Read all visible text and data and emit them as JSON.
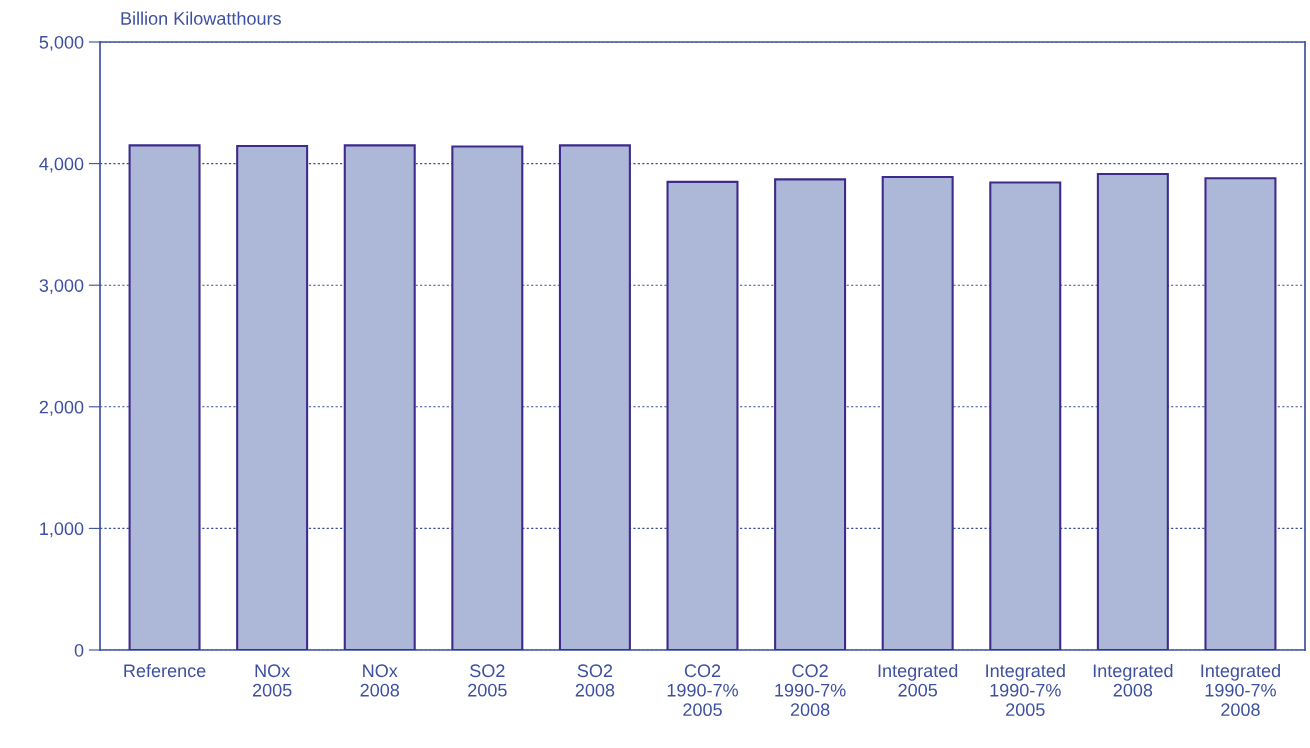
{
  "chart_data": {
    "type": "bar",
    "ylabel": "Billion Kilowatthours",
    "categories": [
      "Reference",
      "NOx\n2005",
      "NOx\n2008",
      "SO2\n2005",
      "SO2\n2008",
      "CO2\n1990-7%\n2005",
      "CO2\n1990-7%\n2008",
      "Integrated\n2005",
      "Integrated\n1990-7%\n2005",
      "Integrated\n2008",
      "Integrated\n1990-7%\n2008"
    ],
    "values": [
      4150,
      4145,
      4150,
      4140,
      4150,
      3850,
      3870,
      3890,
      3845,
      3915,
      3880
    ],
    "color": "#adb8d8",
    "ylim": [
      0,
      5000
    ],
    "yticks": [
      {
        "value": 0,
        "label": "0"
      },
      {
        "value": 1000,
        "label": "1,000"
      },
      {
        "value": 2000,
        "label": "2,000"
      },
      {
        "value": 3000,
        "label": "3,000"
      },
      {
        "value": 4000,
        "label": "4,000"
      },
      {
        "value": 5000,
        "label": "5,000"
      }
    ],
    "grid": "y"
  }
}
